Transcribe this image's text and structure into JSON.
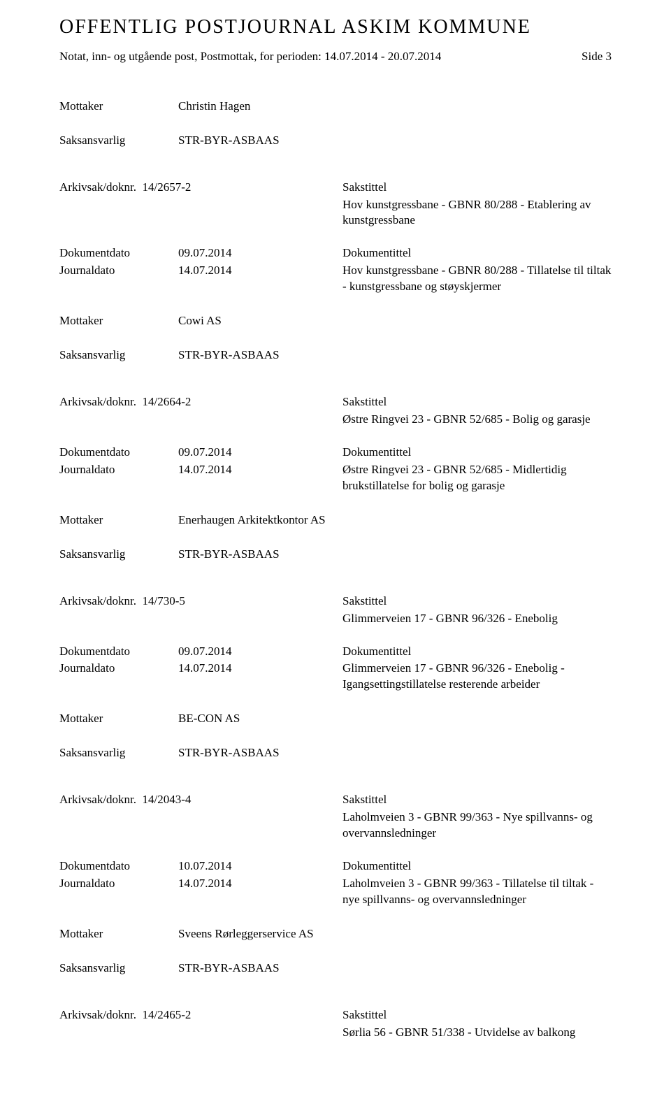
{
  "header": {
    "title": "OFFENTLIG POSTJOURNAL ASKIM KOMMUNE",
    "subtitle": "Notat, inn- og utgående post, Postmottak, for perioden: 14.07.2014 - 20.07.2014",
    "side": "Side 3"
  },
  "labels": {
    "mottaker": "Mottaker",
    "saksansvarlig": "Saksansvarlig",
    "arkivsak": "Arkivsak/doknr.",
    "dokumentdato": "Dokumentdato",
    "journaldato": "Journaldato",
    "sakstittel": "Sakstittel",
    "dokumentittel": "Dokumentittel"
  },
  "entries": [
    {
      "mottaker": "Christin Hagen",
      "saksansvarlig": "STR-BYR-ASBAAS"
    },
    {
      "arkiv": "14/2657-2",
      "sakstittel": "Hov kunstgressbane - GBNR 80/288 - Etablering av kunstgressbane",
      "dokdato": "09.07.2014",
      "journaldato": "14.07.2014",
      "dokumentittel": "Hov kunstgressbane - GBNR 80/288 - Tillatelse til tiltak - kunstgressbane og støyskjermer",
      "mottaker": "Cowi AS",
      "saksansvarlig": "STR-BYR-ASBAAS"
    },
    {
      "arkiv": "14/2664-2",
      "sakstittel": "Østre Ringvei 23 - GBNR 52/685 - Bolig og garasje",
      "dokdato": "09.07.2014",
      "journaldato": "14.07.2014",
      "dokumentittel": "Østre Ringvei 23 - GBNR 52/685 - Midlertidig brukstillatelse for bolig og garasje",
      "mottaker": "Enerhaugen Arkitektkontor AS",
      "saksansvarlig": "STR-BYR-ASBAAS"
    },
    {
      "arkiv": "14/730-5",
      "sakstittel": "Glimmerveien 17 - GBNR 96/326 - Enebolig",
      "dokdato": "09.07.2014",
      "journaldato": "14.07.2014",
      "dokumentittel": "Glimmerveien 17 - GBNR 96/326 - Enebolig - Igangsettingstillatelse resterende arbeider",
      "mottaker": "BE-CON AS",
      "saksansvarlig": "STR-BYR-ASBAAS"
    },
    {
      "arkiv": "14/2043-4",
      "sakstittel": "Laholmveien 3 - GBNR 99/363 - Nye spillvanns- og overvannsledninger",
      "dokdato": "10.07.2014",
      "journaldato": "14.07.2014",
      "dokumentittel": "Laholmveien 3 - GBNR 99/363 - Tillatelse til tiltak - nye spillvanns- og overvannsledninger",
      "mottaker": "Sveens Rørleggerservice AS",
      "saksansvarlig": "STR-BYR-ASBAAS"
    },
    {
      "arkiv": "14/2465-2",
      "sakstittel": "Sørlia 56 - GBNR 51/338 - Utvidelse av balkong"
    }
  ]
}
